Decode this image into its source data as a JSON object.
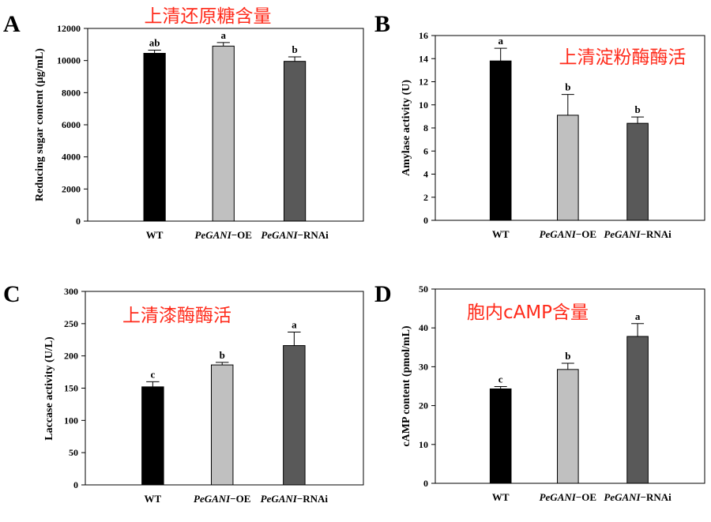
{
  "chart_data": [
    {
      "type": "bar",
      "panel": "A",
      "title": "上清还原糖含量",
      "ylabel": "Reducing sugar content (μg/mL)",
      "categories": [
        "WT",
        "PeGANI−OE",
        "PeGANI−RNAi"
      ],
      "values": [
        10450,
        10900,
        9950
      ],
      "errors": [
        200,
        220,
        280
      ],
      "significance": [
        "ab",
        "a",
        "b"
      ],
      "bar_colors": [
        "#000000",
        "#c0c0c0",
        "#595959"
      ],
      "ylim": [
        0,
        12000
      ],
      "yticks": [
        0,
        2000,
        4000,
        6000,
        8000,
        10000,
        12000
      ],
      "title_pos": "top-center"
    },
    {
      "type": "bar",
      "panel": "B",
      "title": "上清淀粉酶酶活",
      "ylabel": "Amylase activity (U)",
      "categories": [
        "WT",
        "PeGANI−OE",
        "PeGANI−RNAi"
      ],
      "values": [
        13.8,
        9.1,
        8.4
      ],
      "errors": [
        1.1,
        1.8,
        0.55
      ],
      "significance": [
        "a",
        "b",
        "b"
      ],
      "bar_colors": [
        "#000000",
        "#c0c0c0",
        "#595959"
      ],
      "ylim": [
        0,
        16
      ],
      "yticks": [
        0,
        2,
        4,
        6,
        8,
        10,
        12,
        14,
        16
      ],
      "title_pos": "upper-right"
    },
    {
      "type": "bar",
      "panel": "C",
      "title": "上清漆酶酶活",
      "ylabel": "Laccase activity (U/L)",
      "categories": [
        "WT",
        "PeGANI−OE",
        "PeGANI−RNAi"
      ],
      "values": [
        152,
        186,
        216
      ],
      "errors": [
        8,
        4,
        21
      ],
      "significance": [
        "c",
        "b",
        "a"
      ],
      "bar_colors": [
        "#000000",
        "#c0c0c0",
        "#595959"
      ],
      "ylim": [
        0,
        300
      ],
      "yticks": [
        0,
        50,
        100,
        150,
        200,
        250,
        300
      ],
      "title_pos": "upper-left"
    },
    {
      "type": "bar",
      "panel": "D",
      "title": "胞内cAMP含量",
      "ylabel": "cAMP content (pmol/mL)",
      "categories": [
        "WT",
        "PeGANI−OE",
        "PeGANI−RNAi"
      ],
      "values": [
        24.3,
        29.3,
        37.8
      ],
      "errors": [
        0.6,
        1.6,
        3.3
      ],
      "significance": [
        "c",
        "b",
        "a"
      ],
      "bar_colors": [
        "#000000",
        "#c0c0c0",
        "#595959"
      ],
      "ylim": [
        0,
        50
      ],
      "yticks": [
        0,
        10,
        20,
        30,
        40,
        50
      ],
      "title_pos": "upper-left"
    }
  ]
}
